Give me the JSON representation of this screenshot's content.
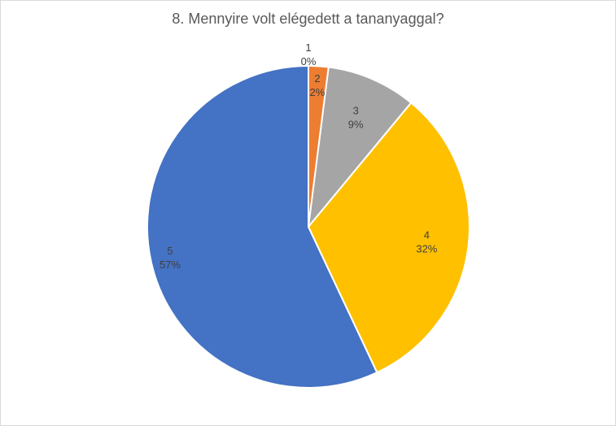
{
  "chart_data": {
    "type": "pie",
    "title": "8. Mennyire volt elégedett  a tananyaggal?",
    "categories": [
      "1",
      "2",
      "3",
      "4",
      "5"
    ],
    "values": [
      0,
      2,
      9,
      32,
      57
    ],
    "value_labels": [
      "0%",
      "2%",
      "9%",
      "32%",
      "57%"
    ],
    "colors": [
      "#5b9bd5",
      "#ed7d31",
      "#a5a5a5",
      "#ffc000",
      "#4472c4"
    ],
    "legend": "none",
    "data_labels": "category-and-percentage"
  }
}
